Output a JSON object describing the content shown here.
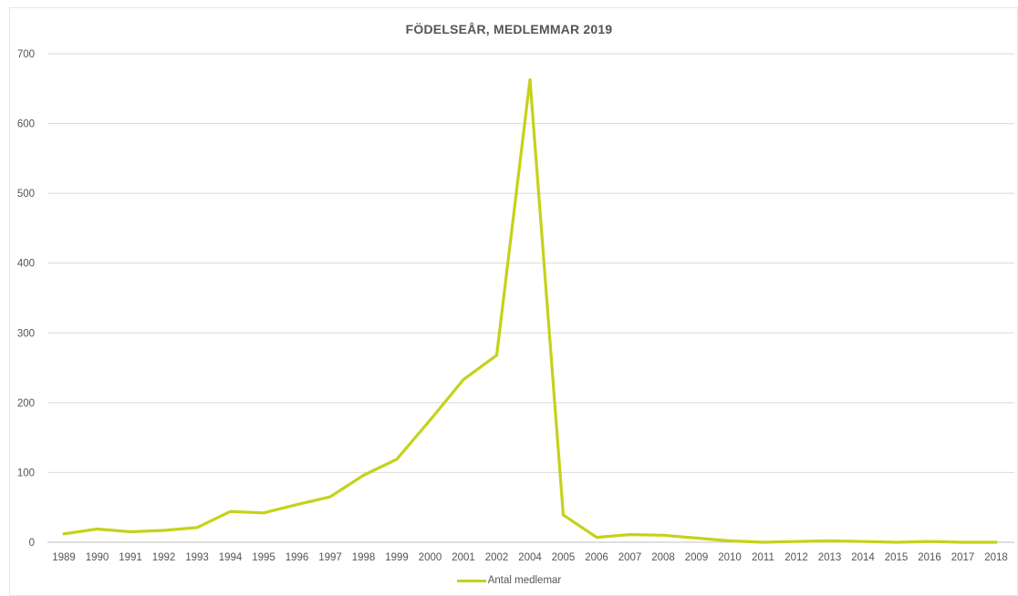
{
  "chart_data": {
    "type": "line",
    "title": "FÖDELSEÅR, MEDLEMMAR 2019",
    "xlabel": "",
    "ylabel": "",
    "categories": [
      "1989",
      "1990",
      "1991",
      "1992",
      "1993",
      "1994",
      "1995",
      "1996",
      "1997",
      "1998",
      "1999",
      "2000",
      "2001",
      "2002",
      "2004",
      "2005",
      "2006",
      "2007",
      "2008",
      "2009",
      "2010",
      "2011",
      "2012",
      "2013",
      "2014",
      "2015",
      "2016",
      "2017",
      "2018"
    ],
    "series": [
      {
        "name": "Antal medlemar",
        "color": "#c5d21a",
        "values": [
          12,
          19,
          15,
          17,
          21,
          44,
          42,
          54,
          65,
          96,
          119,
          175,
          233,
          268,
          663,
          39,
          7,
          11,
          10,
          6,
          2,
          0,
          1,
          2,
          1,
          0,
          1,
          0,
          0
        ]
      }
    ],
    "ylim": [
      0,
      700
    ],
    "yticks": [
      "0",
      "100",
      "200",
      "300",
      "400",
      "500",
      "600",
      "700"
    ],
    "grid": true,
    "legend": "bottom"
  }
}
